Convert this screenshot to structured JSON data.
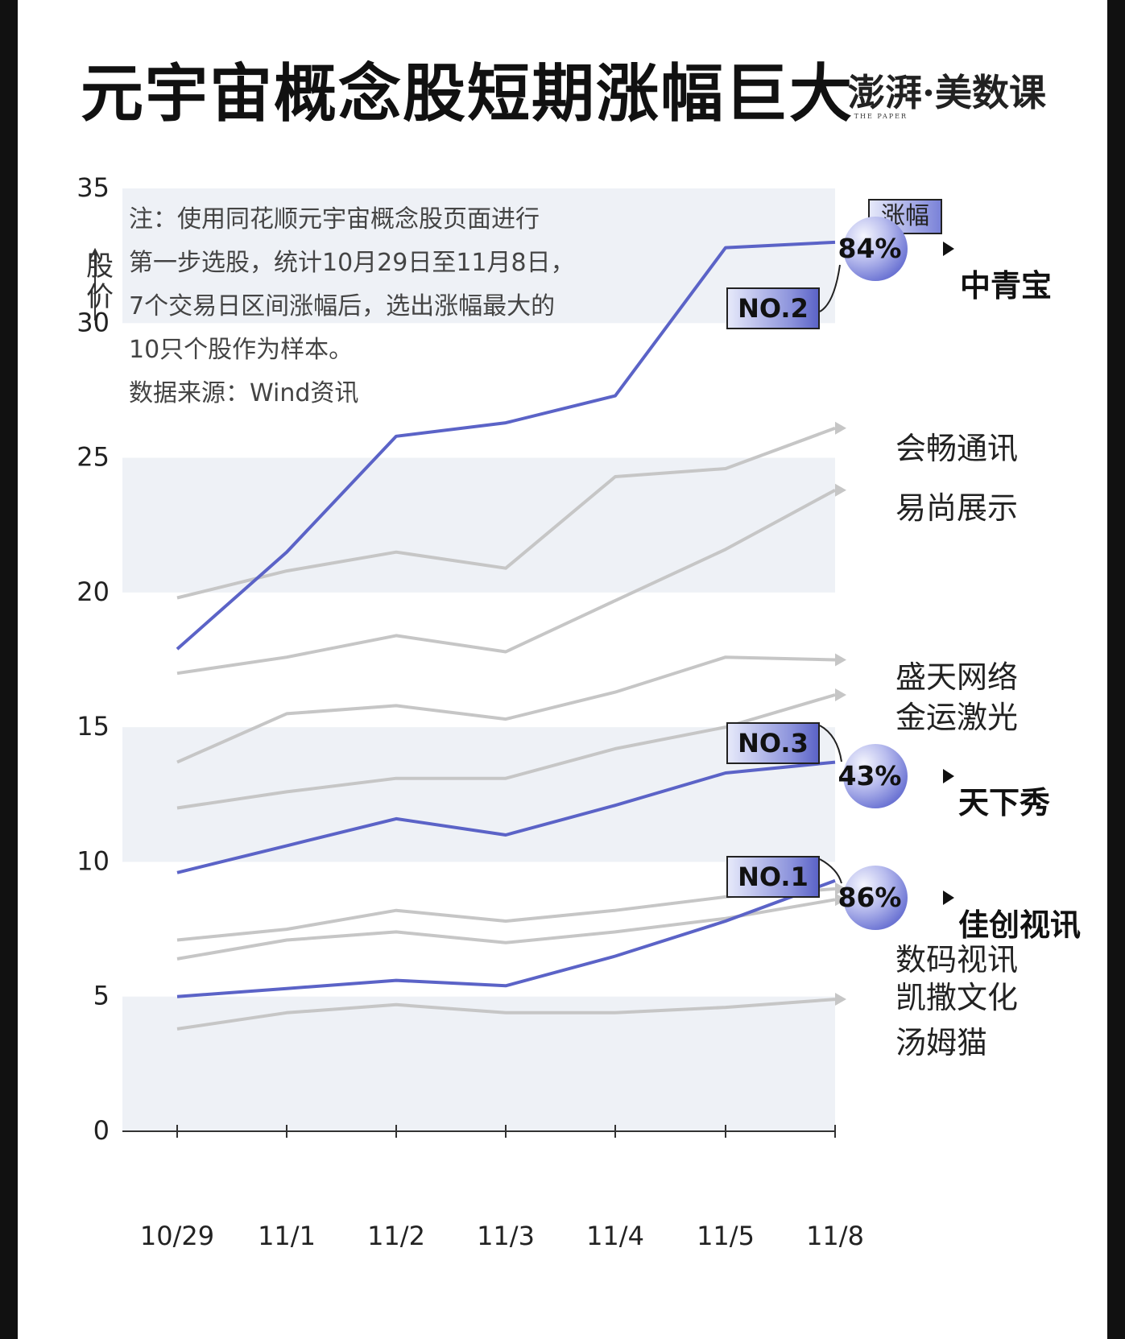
{
  "header": {
    "title": "元宇宙概念股短期涨幅巨大",
    "brand": "澎湃·美数课",
    "brand_sub": "THE PAPER"
  },
  "note": {
    "lines": [
      "注：使用同花顺元宇宙概念股页面进行",
      "第一步选股，统计10月29日至11月8日，",
      "7个交易日区间涨幅后，选出涨幅最大的",
      "10只个股作为样本。",
      "数据来源：Wind资讯"
    ]
  },
  "legend": {
    "label": "涨幅"
  },
  "y_axis_label": [
    "股",
    "价"
  ],
  "colors": {
    "highlight": "#5b63c7",
    "other": "#c6c6c6",
    "band": "#eef1f6",
    "axis": "#333333"
  },
  "chart_data": {
    "type": "line",
    "categories": [
      "10/29",
      "11/1",
      "11/2",
      "11/3",
      "11/4",
      "11/5",
      "11/8"
    ],
    "xlabel": "",
    "ylabel": "股价",
    "ylim": [
      0,
      35
    ],
    "yticks": [
      0,
      5,
      10,
      15,
      20,
      25,
      30,
      35
    ],
    "grid": "alternating horizontal bands",
    "series": [
      {
        "name": "会畅通讯",
        "highlight": false,
        "values": [
          19.8,
          20.8,
          21.5,
          20.9,
          24.3,
          24.6,
          26.1
        ]
      },
      {
        "name": "易尚展示",
        "highlight": false,
        "values": [
          17.0,
          17.6,
          18.4,
          17.8,
          19.7,
          21.6,
          23.8
        ]
      },
      {
        "name": "盛天网络",
        "highlight": false,
        "values": [
          13.7,
          15.5,
          15.8,
          15.3,
          16.3,
          17.6,
          17.5
        ]
      },
      {
        "name": "金运激光",
        "highlight": false,
        "values": [
          12.0,
          12.6,
          13.1,
          13.1,
          14.2,
          15.0,
          16.2
        ]
      },
      {
        "name": "数码视讯",
        "highlight": false,
        "values": [
          7.1,
          7.5,
          8.2,
          7.8,
          8.2,
          8.7,
          9.0
        ]
      },
      {
        "name": "凯撒文化",
        "highlight": false,
        "values": [
          6.4,
          7.1,
          7.4,
          7.0,
          7.4,
          7.9,
          8.6
        ]
      },
      {
        "name": "汤姆猫",
        "highlight": false,
        "values": [
          3.8,
          4.4,
          4.7,
          4.4,
          4.4,
          4.6,
          4.9
        ]
      },
      {
        "name": "中青宝",
        "highlight": true,
        "gain": "84%",
        "rank": "NO.2",
        "values": [
          17.9,
          21.5,
          25.8,
          26.3,
          27.3,
          32.8,
          33.0
        ]
      },
      {
        "name": "天下秀",
        "highlight": true,
        "gain": "43%",
        "rank": "NO.3",
        "values": [
          9.6,
          10.6,
          11.6,
          11.0,
          12.1,
          13.3,
          13.7
        ]
      },
      {
        "name": "佳创视讯",
        "highlight": true,
        "gain": "86%",
        "rank": "NO.1",
        "values": [
          5.0,
          5.3,
          5.6,
          5.4,
          6.5,
          7.8,
          9.3
        ]
      }
    ]
  }
}
